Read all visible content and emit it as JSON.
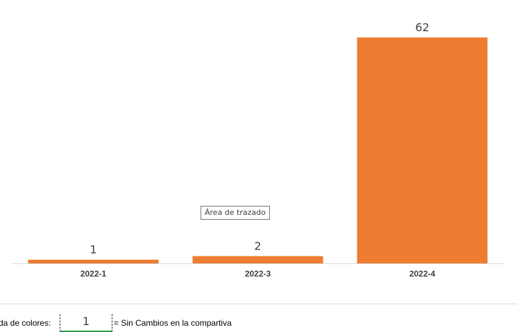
{
  "chart_data": {
    "type": "bar",
    "categories": [
      "2022-1",
      "2022-3",
      "2022-4"
    ],
    "values": [
      1,
      2,
      62
    ],
    "data_labels": [
      "1",
      "2",
      "62"
    ],
    "ylim": [
      0,
      62
    ],
    "bar_color": "#ED7D31",
    "axis_color": "#D9D9D9",
    "grid": false,
    "title": "",
    "xlabel": "",
    "ylabel": ""
  },
  "tooltip": {
    "text": "Área de trazado"
  },
  "legend": {
    "prefix": "da de colores:",
    "value": "1",
    "suffix": "= Sin Cambios en la compartiva"
  }
}
